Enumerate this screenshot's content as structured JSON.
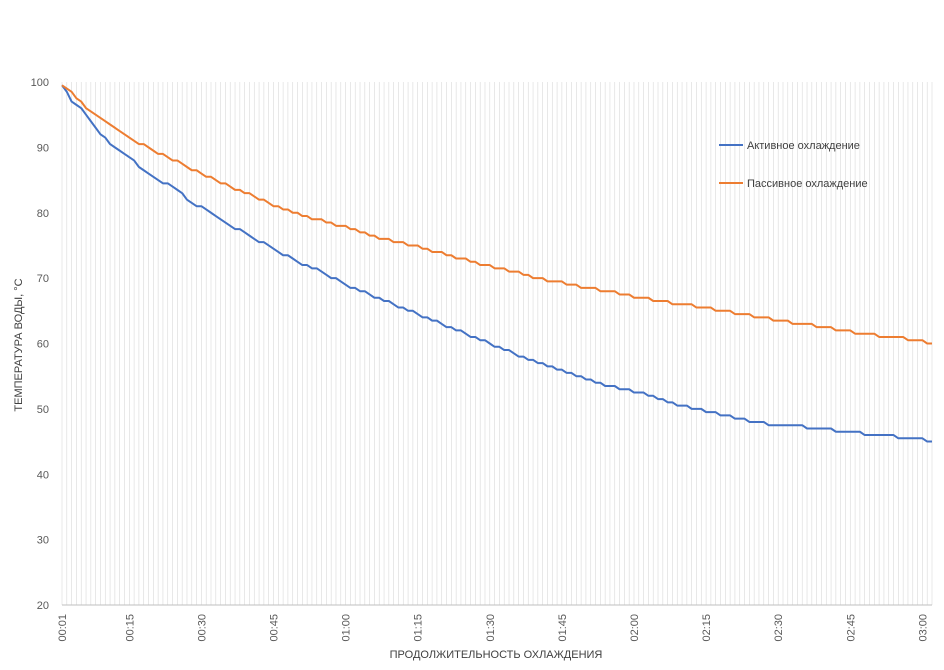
{
  "chart_data": {
    "type": "line",
    "title": "",
    "xlabel": "ПРОДОЛЖИТЕЛЬНОСТЬ ОХЛАЖДЕНИЯ",
    "ylabel": "ТЕМПЕРАТУРА ВОДЫ, °С",
    "ylim": [
      20,
      100
    ],
    "yticks": [
      "20",
      "30",
      "40",
      "50",
      "60",
      "70",
      "80",
      "90",
      "100"
    ],
    "xlim_minutes": [
      1,
      182
    ],
    "xticks": [
      {
        "minute": 1,
        "label": "00:01"
      },
      {
        "minute": 15,
        "label": "00:15"
      },
      {
        "minute": 30,
        "label": "00:30"
      },
      {
        "minute": 45,
        "label": "00:45"
      },
      {
        "minute": 60,
        "label": "01:00"
      },
      {
        "minute": 75,
        "label": "01:15"
      },
      {
        "minute": 90,
        "label": "01:30"
      },
      {
        "minute": 105,
        "label": "01:45"
      },
      {
        "minute": 120,
        "label": "02:00"
      },
      {
        "minute": 135,
        "label": "02:15"
      },
      {
        "minute": 150,
        "label": "02:30"
      },
      {
        "minute": 165,
        "label": "02:45"
      },
      {
        "minute": 180,
        "label": "03:00"
      }
    ],
    "grid": "vertical",
    "legend": "right",
    "series": [
      {
        "name": "Активное охлаждение",
        "color": "#4472C4",
        "points": [
          [
            1,
            99.5
          ],
          [
            3,
            97
          ],
          [
            5,
            95.8
          ],
          [
            7,
            94
          ],
          [
            9,
            92
          ],
          [
            12,
            90
          ],
          [
            15,
            88.5
          ],
          [
            18,
            86.5
          ],
          [
            20,
            85.5
          ],
          [
            25,
            83.5
          ],
          [
            27,
            82
          ],
          [
            30,
            80.8
          ],
          [
            35,
            78.5
          ],
          [
            40,
            76.5
          ],
          [
            45,
            74.5
          ],
          [
            50,
            72.5
          ],
          [
            55,
            71
          ],
          [
            60,
            69
          ],
          [
            65,
            67.5
          ],
          [
            70,
            66
          ],
          [
            75,
            64.5
          ],
          [
            80,
            63
          ],
          [
            85,
            61.5
          ],
          [
            90,
            60
          ],
          [
            95,
            58.5
          ],
          [
            100,
            57.2
          ],
          [
            105,
            56
          ],
          [
            110,
            54.6
          ],
          [
            115,
            53.5
          ],
          [
            120,
            52.7
          ],
          [
            125,
            51.7
          ],
          [
            130,
            50.5
          ],
          [
            135,
            49.6
          ],
          [
            140,
            48.8
          ],
          [
            145,
            48
          ],
          [
            150,
            47.5
          ],
          [
            155,
            47.3
          ],
          [
            160,
            46.9
          ],
          [
            165,
            46.5
          ],
          [
            170,
            46
          ],
          [
            175,
            45.7
          ],
          [
            180,
            45.4
          ],
          [
            182,
            44.8
          ]
        ]
      },
      {
        "name": "Пассивное охлаждение",
        "color": "#ED7D31",
        "points": [
          [
            1,
            99.5
          ],
          [
            3,
            98.3
          ],
          [
            5,
            96.8
          ],
          [
            10,
            94
          ],
          [
            15,
            91.5
          ],
          [
            20,
            89.5
          ],
          [
            25,
            87.8
          ],
          [
            30,
            86
          ],
          [
            35,
            84.3
          ],
          [
            40,
            82.8
          ],
          [
            45,
            81.2
          ],
          [
            50,
            79.8
          ],
          [
            55,
            78.8
          ],
          [
            60,
            77.8
          ],
          [
            65,
            76.5
          ],
          [
            70,
            75.7
          ],
          [
            75,
            74.8
          ],
          [
            80,
            73.8
          ],
          [
            85,
            72.8
          ],
          [
            90,
            71.8
          ],
          [
            95,
            71
          ],
          [
            100,
            70
          ],
          [
            105,
            69.3
          ],
          [
            110,
            68.6
          ],
          [
            115,
            68
          ],
          [
            120,
            67.2
          ],
          [
            125,
            66.6
          ],
          [
            130,
            66
          ],
          [
            135,
            65.4
          ],
          [
            140,
            64.8
          ],
          [
            145,
            64.2
          ],
          [
            150,
            63.6
          ],
          [
            155,
            63
          ],
          [
            160,
            62.5
          ],
          [
            165,
            61.8
          ],
          [
            170,
            61.3
          ],
          [
            175,
            60.9
          ],
          [
            180,
            60.4
          ],
          [
            181,
            59.8
          ],
          [
            182,
            59.8
          ]
        ]
      }
    ]
  }
}
